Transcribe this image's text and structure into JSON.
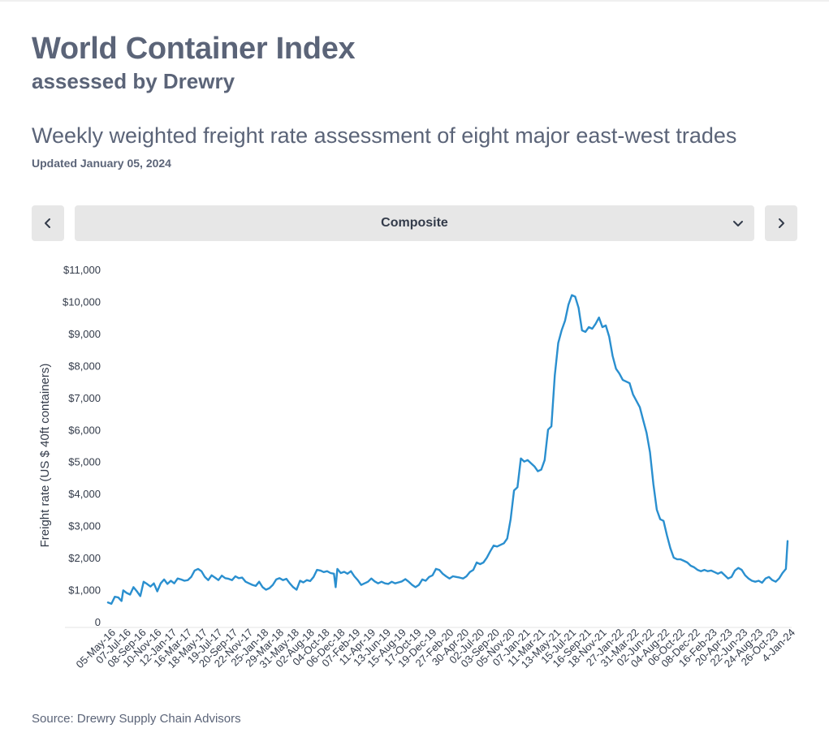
{
  "header": {
    "title": "World Container Index",
    "subtitle": "assessed by Drewry",
    "heading": "Weekly weighted freight rate assessment of eight major east-west trades",
    "updated": "Updated January 05, 2024"
  },
  "controls": {
    "selected_route": "Composite",
    "icons": {
      "prev": "chevron-left-icon",
      "next": "chevron-right-icon",
      "dropdown": "chevron-down-icon"
    }
  },
  "source": {
    "label": "Source:",
    "text": "Drewry Supply Chain Advisors"
  },
  "colors": {
    "line": "#2a8fcf",
    "text": "#5b6478",
    "control_bg": "#e7e7e7"
  },
  "chart_data": {
    "type": "line",
    "ylabel": "Freight rate (US $ 40ft containers)",
    "xlabel": "",
    "ylim": [
      0,
      11000
    ],
    "yticks": [
      0,
      1000,
      2000,
      3000,
      4000,
      5000,
      6000,
      7000,
      8000,
      9000,
      10000,
      11000
    ],
    "ytick_labels": [
      "0",
      "$1,000",
      "$2,000",
      "$3,000",
      "$4,000",
      "$5,000",
      "$6,000",
      "$7,000",
      "$8,000",
      "$9,000",
      "$10,000",
      "$11,000"
    ],
    "xdomain": [
      "2016-05-05",
      "2024-01-04"
    ],
    "xtick_labels": [
      {
        "label": "05-May-16",
        "date": "2016-05-05"
      },
      {
        "label": "07-Jul-16",
        "date": "2016-07-07"
      },
      {
        "label": "08-Sep-16",
        "date": "2016-09-08"
      },
      {
        "label": "10-Nov-16",
        "date": "2016-11-10"
      },
      {
        "label": "12-Jan-17",
        "date": "2017-01-12"
      },
      {
        "label": "16-Mar-17",
        "date": "2017-03-16"
      },
      {
        "label": "18-May-17",
        "date": "2017-05-18"
      },
      {
        "label": "19-Jul-17",
        "date": "2017-07-19"
      },
      {
        "label": "20-Sep-17",
        "date": "2017-09-20"
      },
      {
        "label": "22-Nov-17",
        "date": "2017-11-22"
      },
      {
        "label": "25-Jan-18",
        "date": "2018-01-25"
      },
      {
        "label": "29-Mar-18",
        "date": "2018-03-29"
      },
      {
        "label": "31-May-18",
        "date": "2018-05-31"
      },
      {
        "label": "02-Aug-18",
        "date": "2018-08-02"
      },
      {
        "label": "04-Oct-18",
        "date": "2018-10-04"
      },
      {
        "label": "06-Dec-18",
        "date": "2018-12-06"
      },
      {
        "label": "07-Feb-19",
        "date": "2019-02-07"
      },
      {
        "label": "11-Apr-19",
        "date": "2019-04-11"
      },
      {
        "label": "13-Jun-19",
        "date": "2019-06-13"
      },
      {
        "label": "15-Aug-19",
        "date": "2019-08-15"
      },
      {
        "label": "17-Oct-19",
        "date": "2019-10-17"
      },
      {
        "label": "19-Dec-19",
        "date": "2019-12-19"
      },
      {
        "label": "27-Feb-20",
        "date": "2020-02-27"
      },
      {
        "label": "30-Apr-20",
        "date": "2020-04-30"
      },
      {
        "label": "02-Jul-20",
        "date": "2020-07-02"
      },
      {
        "label": "03-Sep-20",
        "date": "2020-09-03"
      },
      {
        "label": "05-Nov-20",
        "date": "2020-11-05"
      },
      {
        "label": "07-Jan-21",
        "date": "2021-01-07"
      },
      {
        "label": "11-Mar-21",
        "date": "2021-03-11"
      },
      {
        "label": "13-May-21",
        "date": "2021-05-13"
      },
      {
        "label": "15-Jul-21",
        "date": "2021-07-15"
      },
      {
        "label": "16-Sep-21",
        "date": "2021-09-16"
      },
      {
        "label": "18-Nov-21",
        "date": "2021-11-18"
      },
      {
        "label": "27-Jan-22",
        "date": "2022-01-27"
      },
      {
        "label": "31-Mar-22",
        "date": "2022-03-31"
      },
      {
        "label": "02-Jun-22",
        "date": "2022-06-02"
      },
      {
        "label": "04-Aug-22",
        "date": "2022-08-04"
      },
      {
        "label": "06-Oct-22",
        "date": "2022-10-06"
      },
      {
        "label": "08-Dec-22",
        "date": "2022-12-08"
      },
      {
        "label": "16-Feb-23",
        "date": "2023-02-16"
      },
      {
        "label": "20-Apr-23",
        "date": "2023-04-20"
      },
      {
        "label": "22-Jun-23",
        "date": "2023-06-22"
      },
      {
        "label": "24-Aug-23",
        "date": "2023-08-24"
      },
      {
        "label": "26-Oct-23",
        "date": "2023-10-26"
      },
      {
        "label": "4-Jan-24",
        "date": "2024-01-04"
      }
    ],
    "series": [
      {
        "points": [
          [
            "2016-05-05",
            600
          ],
          [
            "2016-05-19",
            560
          ],
          [
            "2016-06-02",
            780
          ],
          [
            "2016-06-16",
            760
          ],
          [
            "2016-06-30",
            650
          ],
          [
            "2016-07-07",
            980
          ],
          [
            "2016-07-21",
            900
          ],
          [
            "2016-08-04",
            850
          ],
          [
            "2016-08-18",
            1080
          ],
          [
            "2016-09-01",
            950
          ],
          [
            "2016-09-15",
            800
          ],
          [
            "2016-09-29",
            1250
          ],
          [
            "2016-10-13",
            1180
          ],
          [
            "2016-10-27",
            1100
          ],
          [
            "2016-11-10",
            1200
          ],
          [
            "2016-11-24",
            950
          ],
          [
            "2016-12-08",
            1200
          ],
          [
            "2016-12-22",
            1320
          ],
          [
            "2017-01-05",
            1180
          ],
          [
            "2017-01-19",
            1280
          ],
          [
            "2017-02-02",
            1200
          ],
          [
            "2017-02-16",
            1350
          ],
          [
            "2017-03-02",
            1320
          ],
          [
            "2017-03-16",
            1280
          ],
          [
            "2017-03-30",
            1300
          ],
          [
            "2017-04-13",
            1400
          ],
          [
            "2017-04-27",
            1600
          ],
          [
            "2017-05-11",
            1650
          ],
          [
            "2017-05-25",
            1580
          ],
          [
            "2017-06-08",
            1400
          ],
          [
            "2017-06-22",
            1300
          ],
          [
            "2017-07-06",
            1450
          ],
          [
            "2017-07-20",
            1380
          ],
          [
            "2017-08-03",
            1300
          ],
          [
            "2017-08-17",
            1440
          ],
          [
            "2017-08-31",
            1360
          ],
          [
            "2017-09-14",
            1340
          ],
          [
            "2017-09-28",
            1300
          ],
          [
            "2017-10-12",
            1420
          ],
          [
            "2017-10-26",
            1360
          ],
          [
            "2017-11-09",
            1380
          ],
          [
            "2017-11-23",
            1250
          ],
          [
            "2017-12-07",
            1200
          ],
          [
            "2017-12-21",
            1150
          ],
          [
            "2018-01-04",
            1120
          ],
          [
            "2018-01-18",
            1250
          ],
          [
            "2018-02-01",
            1080
          ],
          [
            "2018-02-15",
            1000
          ],
          [
            "2018-03-01",
            1050
          ],
          [
            "2018-03-15",
            1150
          ],
          [
            "2018-03-29",
            1320
          ],
          [
            "2018-04-12",
            1360
          ],
          [
            "2018-04-26",
            1300
          ],
          [
            "2018-05-10",
            1340
          ],
          [
            "2018-05-24",
            1200
          ],
          [
            "2018-06-07",
            1080
          ],
          [
            "2018-06-21",
            1000
          ],
          [
            "2018-07-05",
            1280
          ],
          [
            "2018-07-19",
            1230
          ],
          [
            "2018-08-02",
            1300
          ],
          [
            "2018-08-16",
            1270
          ],
          [
            "2018-08-30",
            1400
          ],
          [
            "2018-09-13",
            1620
          ],
          [
            "2018-09-27",
            1600
          ],
          [
            "2018-10-11",
            1550
          ],
          [
            "2018-10-25",
            1580
          ],
          [
            "2018-11-08",
            1520
          ],
          [
            "2018-11-22",
            1500
          ],
          [
            "2018-11-29",
            1080
          ],
          [
            "2018-12-06",
            1650
          ],
          [
            "2018-12-20",
            1520
          ],
          [
            "2019-01-03",
            1560
          ],
          [
            "2019-01-17",
            1500
          ],
          [
            "2019-01-31",
            1580
          ],
          [
            "2019-02-14",
            1420
          ],
          [
            "2019-02-28",
            1300
          ],
          [
            "2019-03-14",
            1150
          ],
          [
            "2019-03-28",
            1200
          ],
          [
            "2019-04-11",
            1250
          ],
          [
            "2019-04-25",
            1350
          ],
          [
            "2019-05-09",
            1260
          ],
          [
            "2019-05-23",
            1200
          ],
          [
            "2019-06-06",
            1250
          ],
          [
            "2019-06-20",
            1200
          ],
          [
            "2019-07-04",
            1180
          ],
          [
            "2019-07-18",
            1250
          ],
          [
            "2019-08-01",
            1200
          ],
          [
            "2019-08-15",
            1230
          ],
          [
            "2019-08-29",
            1260
          ],
          [
            "2019-09-12",
            1330
          ],
          [
            "2019-09-26",
            1250
          ],
          [
            "2019-10-10",
            1150
          ],
          [
            "2019-10-24",
            1080
          ],
          [
            "2019-11-07",
            1150
          ],
          [
            "2019-11-21",
            1320
          ],
          [
            "2019-12-05",
            1280
          ],
          [
            "2019-12-19",
            1400
          ],
          [
            "2020-01-02",
            1450
          ],
          [
            "2020-01-16",
            1650
          ],
          [
            "2020-01-30",
            1620
          ],
          [
            "2020-02-13",
            1500
          ],
          [
            "2020-02-27",
            1420
          ],
          [
            "2020-03-12",
            1350
          ],
          [
            "2020-03-26",
            1420
          ],
          [
            "2020-04-09",
            1400
          ],
          [
            "2020-04-23",
            1380
          ],
          [
            "2020-05-07",
            1350
          ],
          [
            "2020-05-21",
            1420
          ],
          [
            "2020-06-04",
            1550
          ],
          [
            "2020-06-18",
            1620
          ],
          [
            "2020-07-02",
            1850
          ],
          [
            "2020-07-16",
            1800
          ],
          [
            "2020-07-30",
            1850
          ],
          [
            "2020-08-13",
            2000
          ],
          [
            "2020-08-27",
            2200
          ],
          [
            "2020-09-10",
            2380
          ],
          [
            "2020-09-24",
            2350
          ],
          [
            "2020-10-08",
            2400
          ],
          [
            "2020-10-22",
            2450
          ],
          [
            "2020-11-05",
            2600
          ],
          [
            "2020-11-19",
            3200
          ],
          [
            "2020-12-03",
            4100
          ],
          [
            "2020-12-17",
            4200
          ],
          [
            "2020-12-31",
            5100
          ],
          [
            "2021-01-14",
            5000
          ],
          [
            "2021-01-28",
            5050
          ],
          [
            "2021-02-11",
            4950
          ],
          [
            "2021-02-25",
            4850
          ],
          [
            "2021-03-11",
            4700
          ],
          [
            "2021-03-25",
            4750
          ],
          [
            "2021-04-08",
            5050
          ],
          [
            "2021-04-22",
            6000
          ],
          [
            "2021-05-06",
            6100
          ],
          [
            "2021-05-20",
            7700
          ],
          [
            "2021-06-03",
            8700
          ],
          [
            "2021-06-17",
            9100
          ],
          [
            "2021-07-01",
            9400
          ],
          [
            "2021-07-15",
            9900
          ],
          [
            "2021-07-29",
            10200
          ],
          [
            "2021-08-12",
            10150
          ],
          [
            "2021-08-26",
            9800
          ],
          [
            "2021-09-09",
            9100
          ],
          [
            "2021-09-23",
            9050
          ],
          [
            "2021-10-07",
            9200
          ],
          [
            "2021-10-21",
            9150
          ],
          [
            "2021-11-04",
            9300
          ],
          [
            "2021-11-18",
            9500
          ],
          [
            "2021-12-02",
            9200
          ],
          [
            "2021-12-16",
            9250
          ],
          [
            "2021-12-30",
            8900
          ],
          [
            "2022-01-13",
            8300
          ],
          [
            "2022-01-27",
            7900
          ],
          [
            "2022-02-10",
            7750
          ],
          [
            "2022-02-24",
            7550
          ],
          [
            "2022-03-10",
            7500
          ],
          [
            "2022-03-24",
            7450
          ],
          [
            "2022-04-07",
            7100
          ],
          [
            "2022-04-21",
            6900
          ],
          [
            "2022-05-05",
            6700
          ],
          [
            "2022-05-19",
            6300
          ],
          [
            "2022-06-02",
            5900
          ],
          [
            "2022-06-16",
            5300
          ],
          [
            "2022-06-30",
            4300
          ],
          [
            "2022-07-14",
            3500
          ],
          [
            "2022-07-28",
            3200
          ],
          [
            "2022-08-11",
            3150
          ],
          [
            "2022-08-25",
            2700
          ],
          [
            "2022-09-08",
            2300
          ],
          [
            "2022-09-22",
            2000
          ],
          [
            "2022-10-06",
            1950
          ],
          [
            "2022-10-20",
            1950
          ],
          [
            "2022-11-03",
            1900
          ],
          [
            "2022-11-17",
            1850
          ],
          [
            "2022-12-01",
            1750
          ],
          [
            "2022-12-15",
            1700
          ],
          [
            "2022-12-29",
            1620
          ],
          [
            "2023-01-12",
            1580
          ],
          [
            "2023-01-26",
            1620
          ],
          [
            "2023-02-09",
            1580
          ],
          [
            "2023-02-23",
            1600
          ],
          [
            "2023-03-09",
            1550
          ],
          [
            "2023-03-23",
            1500
          ],
          [
            "2023-04-06",
            1550
          ],
          [
            "2023-04-20",
            1450
          ],
          [
            "2023-05-04",
            1350
          ],
          [
            "2023-05-18",
            1400
          ],
          [
            "2023-06-01",
            1600
          ],
          [
            "2023-06-15",
            1680
          ],
          [
            "2023-06-29",
            1620
          ],
          [
            "2023-07-13",
            1450
          ],
          [
            "2023-07-27",
            1350
          ],
          [
            "2023-08-10",
            1280
          ],
          [
            "2023-08-24",
            1250
          ],
          [
            "2023-09-07",
            1280
          ],
          [
            "2023-09-21",
            1220
          ],
          [
            "2023-10-05",
            1350
          ],
          [
            "2023-10-19",
            1400
          ],
          [
            "2023-11-02",
            1300
          ],
          [
            "2023-11-16",
            1250
          ],
          [
            "2023-11-30",
            1350
          ],
          [
            "2023-12-14",
            1520
          ],
          [
            "2023-12-28",
            1650
          ],
          [
            "2024-01-04",
            2520
          ]
        ]
      }
    ]
  }
}
